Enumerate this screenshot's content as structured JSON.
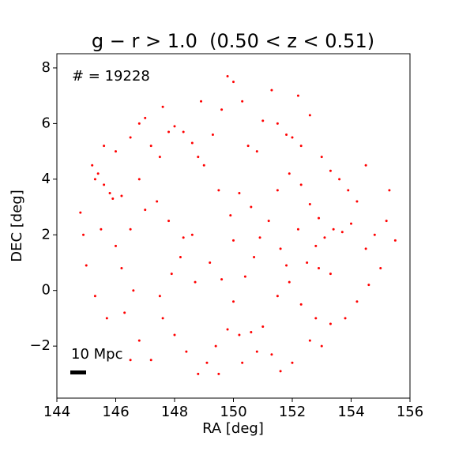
{
  "chart_data": {
    "type": "scatter",
    "title": "g − r > 1.0  (0.50 < z < 0.51)",
    "xlabel": "RA [deg]",
    "ylabel": "DEC [deg]",
    "annotations": [
      "# = 19228",
      "10 Mpc"
    ],
    "xlim": [
      144,
      156
    ],
    "ylim": [
      -3.87,
      8.51
    ],
    "xticks": [
      144,
      146,
      148,
      150,
      152,
      154,
      156
    ],
    "yticks": [
      {
        "value": -2,
        "label": "−2"
      },
      0,
      2,
      4,
      6,
      8
    ],
    "color": "#ff0000",
    "x": [
      145.2,
      145.4,
      145.6,
      145.8,
      145.3,
      145.9,
      146.2,
      146.5,
      146.8,
      147.0,
      147.2,
      147.5,
      147.8,
      148.0,
      148.3,
      148.6,
      148.8,
      149.0,
      149.3,
      149.6,
      149.8,
      150.0,
      150.3,
      150.5,
      150.8,
      151.0,
      151.3,
      151.5,
      151.8,
      152.0,
      152.3,
      152.6,
      153.0,
      153.3,
      153.6,
      153.9,
      154.2,
      154.0,
      153.7,
      153.4,
      153.1,
      152.8,
      152.5,
      152.9,
      153.3,
      154.5,
      154.8,
      155.2,
      155.5,
      155.0,
      154.6,
      154.2,
      153.8,
      153.3,
      152.8,
      152.3,
      151.9,
      151.5,
      151.0,
      150.6,
      150.2,
      149.8,
      149.4,
      149.1,
      148.8,
      149.5,
      150.3,
      150.8,
      151.3,
      151.6,
      152.0,
      148.4,
      148.0,
      147.6,
      147.2,
      146.8,
      146.3,
      146.6,
      146.2,
      145.7,
      145.3,
      145.0,
      144.9,
      144.8,
      145.5,
      146.0,
      146.5,
      147.0,
      147.4,
      147.8,
      148.3,
      148.6,
      148.2,
      147.9,
      147.5,
      148.7,
      149.2,
      149.6,
      150.0,
      150.4,
      150.7,
      150.9,
      151.2,
      150.6,
      150.2,
      149.9,
      149.5,
      151.5,
      151.9,
      152.3,
      152.6,
      152.9,
      152.2,
      151.6,
      151.8,
      152.6,
      153.0,
      146.0,
      145.6,
      146.8,
      148.9,
      147.6,
      152.2,
      154.5,
      155.3,
      146.5,
      150.0
    ],
    "values": [
      4.5,
      4.2,
      3.8,
      3.5,
      4.0,
      3.3,
      3.4,
      5.5,
      6.0,
      6.2,
      5.2,
      4.8,
      5.7,
      5.9,
      5.7,
      5.3,
      4.8,
      4.5,
      5.6,
      6.5,
      7.7,
      7.5,
      6.8,
      5.2,
      5.0,
      6.1,
      7.2,
      6.0,
      5.6,
      5.5,
      5.2,
      6.3,
      4.8,
      4.3,
      4.0,
      3.6,
      3.2,
      2.4,
      2.1,
      2.2,
      1.9,
      1.6,
      1.0,
      0.8,
      0.6,
      1.5,
      2.0,
      2.5,
      1.8,
      0.8,
      0.2,
      -0.4,
      -1.0,
      -1.2,
      -1.0,
      -0.5,
      0.3,
      -0.2,
      -1.3,
      -1.5,
      -1.6,
      -1.4,
      -2.0,
      -2.6,
      -3.0,
      -3.0,
      -2.6,
      -2.2,
      -2.3,
      -2.9,
      -2.6,
      -2.2,
      -1.6,
      -1.0,
      -2.5,
      -1.8,
      -0.8,
      0.0,
      0.8,
      -1.0,
      -0.2,
      0.9,
      2.0,
      2.8,
      2.2,
      1.6,
      2.2,
      2.9,
      3.2,
      2.5,
      1.9,
      2.0,
      1.2,
      0.6,
      -0.2,
      0.3,
      1.0,
      0.4,
      -0.4,
      0.5,
      1.2,
      1.9,
      2.5,
      3.0,
      3.5,
      2.7,
      3.6,
      3.6,
      4.2,
      3.8,
      3.1,
      2.6,
      2.2,
      1.5,
      0.9,
      -1.8,
      -2.0,
      5.0,
      5.2,
      4.0,
      6.8,
      6.6,
      7.0,
      4.5,
      3.6,
      -2.5,
      1.8
    ]
  }
}
